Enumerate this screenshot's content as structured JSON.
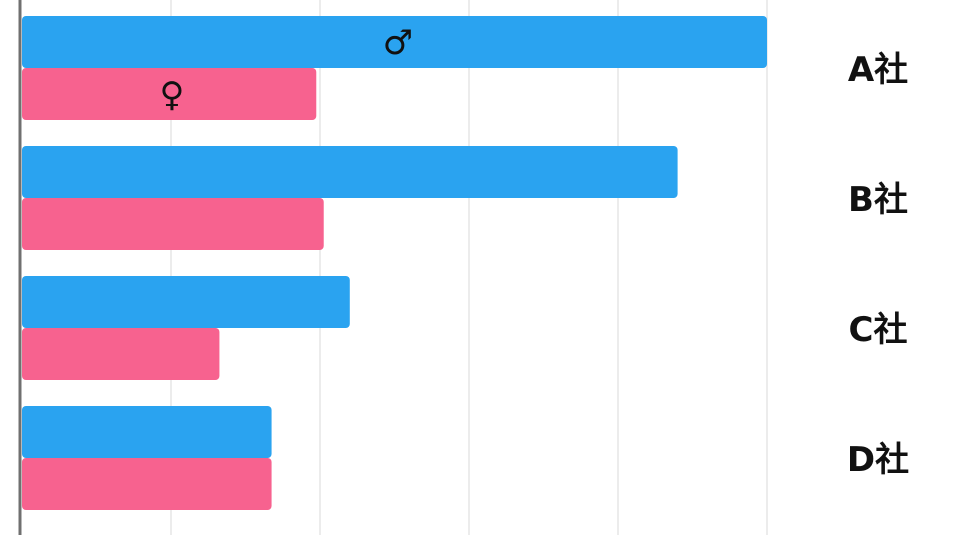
{
  "chart_data": {
    "type": "bar",
    "orientation": "horizontal",
    "categories": [
      "A社",
      "B社",
      "C社",
      "D社"
    ],
    "series": [
      {
        "name": "♂",
        "color": "#2AA3F0",
        "values": [
          100,
          88,
          44,
          33.5
        ]
      },
      {
        "name": "♀",
        "color": "#F7628F",
        "values": [
          39.5,
          40.5,
          26.5,
          33.5
        ]
      }
    ],
    "xlim": [
      0,
      100
    ],
    "grid": true,
    "legend": "inline-on-first-bars",
    "category_label_position": "right"
  }
}
